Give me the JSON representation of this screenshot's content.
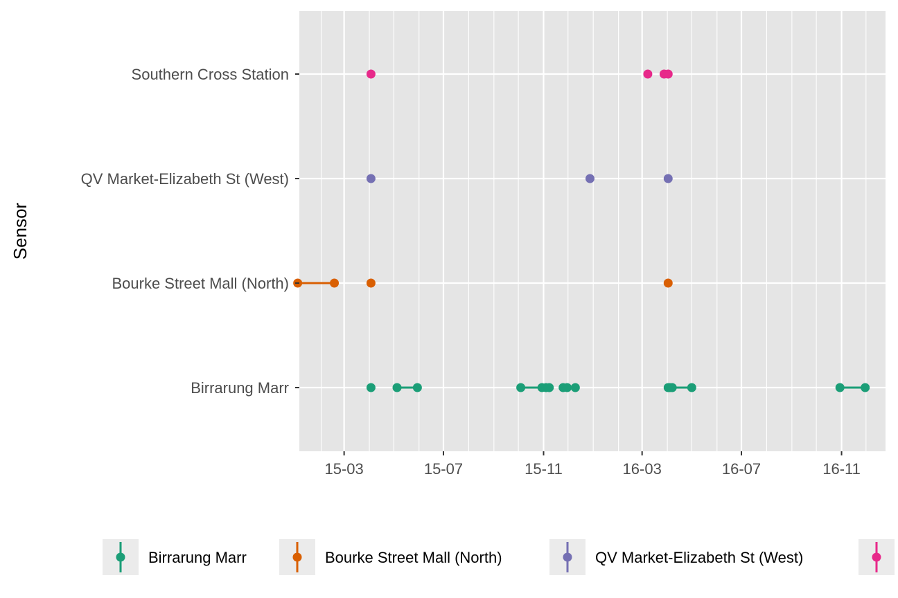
{
  "chart_data": {
    "type": "scatter",
    "title": "",
    "xlabel": "",
    "ylabel": "Sensor",
    "x_axis_kind": "date",
    "xlim": [
      "2015-01-05",
      "2016-12-25"
    ],
    "x_ticks": [
      {
        "date": "2015-03-01",
        "label": "15-03"
      },
      {
        "date": "2015-07-01",
        "label": "15-07"
      },
      {
        "date": "2015-11-01",
        "label": "15-11"
      },
      {
        "date": "2016-03-01",
        "label": "16-03"
      },
      {
        "date": "2016-07-01",
        "label": "16-07"
      },
      {
        "date": "2016-11-01",
        "label": "16-11"
      }
    ],
    "x_minor_ticks": [
      "2015-01-01",
      "2015-05-01",
      "2015-09-01",
      "2016-01-01",
      "2016-05-01",
      "2016-09-01",
      "2017-01-01"
    ],
    "categories": [
      "Birrarung Marr",
      "Bourke Street Mall (North)",
      "QV Market-Elizabeth St (West)",
      "Southern Cross Station"
    ],
    "grid": true,
    "legend_position": "bottom",
    "series": [
      {
        "name": "Birrarung Marr",
        "color": "#1b9e77",
        "segments": [
          [
            "2015-04-03",
            "2015-04-03"
          ],
          [
            "2015-05-05",
            "2015-05-30"
          ],
          [
            "2015-10-04",
            "2015-11-08"
          ],
          [
            "2015-11-25",
            "2015-12-10"
          ],
          [
            "2016-04-02",
            "2016-05-01"
          ],
          [
            "2016-10-30",
            "2016-11-30"
          ]
        ],
        "points": [
          "2015-04-03",
          "2015-05-05",
          "2015-05-30",
          "2015-10-04",
          "2015-10-30",
          "2015-11-04",
          "2015-11-08",
          "2015-11-25",
          "2015-11-30",
          "2015-12-10",
          "2016-04-02",
          "2016-04-04",
          "2016-04-07",
          "2016-05-01",
          "2016-10-30",
          "2016-11-30"
        ]
      },
      {
        "name": "Bourke Street Mall (North)",
        "color": "#d95f02",
        "segments": [
          [
            "2015-01-03",
            "2015-02-17"
          ],
          [
            "2015-04-03",
            "2015-04-03"
          ],
          [
            "2016-04-02",
            "2016-04-02"
          ]
        ],
        "points": [
          "2015-01-03",
          "2015-02-17",
          "2015-04-03",
          "2016-04-02"
        ]
      },
      {
        "name": "QV Market-Elizabeth St (West)",
        "color": "#7570b3",
        "segments": [
          [
            "2015-04-03",
            "2015-04-03"
          ],
          [
            "2015-12-28",
            "2015-12-28"
          ],
          [
            "2016-04-02",
            "2016-04-02"
          ]
        ],
        "points": [
          "2015-04-03",
          "2015-12-28",
          "2016-04-02"
        ]
      },
      {
        "name": "Southern Cross Station",
        "color": "#e7298a",
        "segments": [
          [
            "2015-04-03",
            "2015-04-03"
          ],
          [
            "2016-03-08",
            "2016-03-08"
          ],
          [
            "2016-03-28",
            "2016-04-02"
          ]
        ],
        "points": [
          "2015-04-03",
          "2016-03-08",
          "2016-03-28",
          "2016-04-02"
        ]
      }
    ],
    "legend": [
      {
        "label": "Birrarung Marr",
        "color": "#1b9e77"
      },
      {
        "label": "Bourke Street Mall (North)",
        "color": "#d95f02"
      },
      {
        "label": "QV Market-Elizabeth St (West)",
        "color": "#7570b3"
      },
      {
        "label": "",
        "color": "#e7298a"
      }
    ],
    "colors": {
      "panel_bg": "#e5e5e5",
      "grid": "#ffffff",
      "legend_key_bg": "#ebebeb",
      "tick_text": "#4d4d4d",
      "tick_mark": "#333333"
    }
  }
}
